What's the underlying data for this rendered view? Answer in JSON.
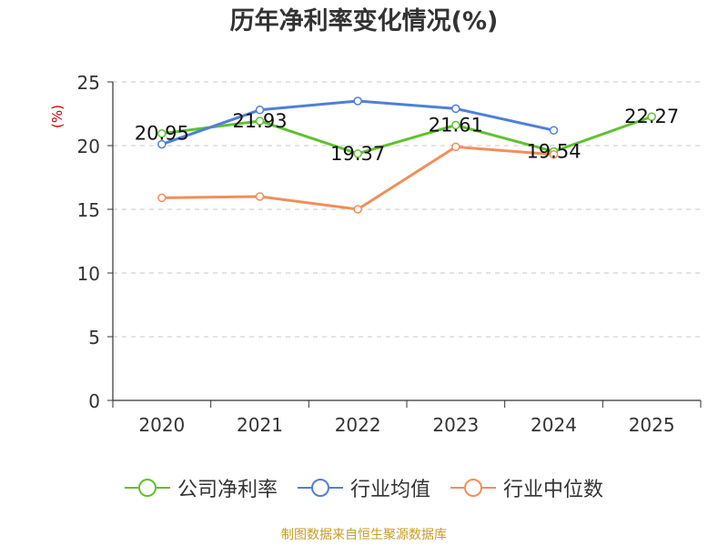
{
  "chart_title": "历年净利率变化情况(%)",
  "source_note": "制图数据来自恒生聚源数据库",
  "chart_data": {
    "type": "line",
    "title": "历年净利率变化情况(%)",
    "ylabel": "(%)",
    "xlabel": "",
    "categories": [
      "2020",
      "2021",
      "2022",
      "2023",
      "2024",
      "2025"
    ],
    "ylim": [
      0,
      25
    ],
    "yticks": [
      0,
      5,
      10,
      15,
      20,
      25
    ],
    "grid": true,
    "legend_position": "bottom",
    "series": [
      {
        "name": "公司净利率",
        "color": "#5ec22f",
        "values": [
          20.95,
          21.93,
          19.37,
          21.61,
          19.54,
          22.27
        ],
        "show_labels": true
      },
      {
        "name": "行业均值",
        "color": "#4f7fd8",
        "values": [
          20.1,
          22.8,
          23.5,
          22.9,
          21.2,
          null
        ],
        "show_labels": false
      },
      {
        "name": "行业中位数",
        "color": "#f28e5a",
        "values": [
          15.9,
          16.0,
          15.0,
          19.9,
          19.3,
          null
        ],
        "show_labels": false
      }
    ]
  }
}
